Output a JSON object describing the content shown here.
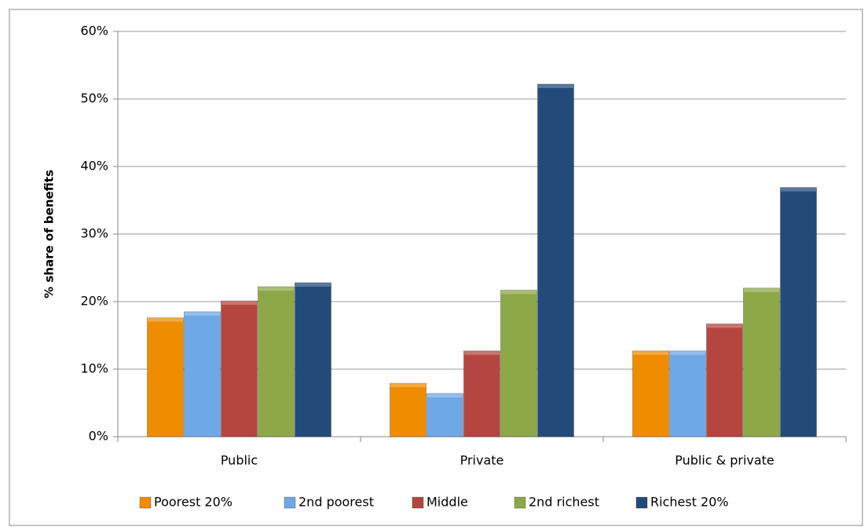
{
  "chart_data": {
    "type": "bar",
    "y_label": "% share of benefits",
    "categories": [
      "Public",
      "Private",
      "Public & private"
    ],
    "series": [
      {
        "name": "Poorest 20%",
        "color": "#f08c00",
        "values": [
          17.6,
          7.9,
          12.7
        ]
      },
      {
        "name": "2nd poorest",
        "color": "#6fa8e6",
        "values": [
          18.5,
          6.4,
          12.7
        ]
      },
      {
        "name": "Middle",
        "color": "#b5463f",
        "values": [
          20.1,
          12.7,
          16.7
        ]
      },
      {
        "name": "2nd richest",
        "color": "#8ca847",
        "values": [
          22.2,
          21.7,
          22.0
        ]
      },
      {
        "name": "Richest 20%",
        "color": "#234b7a",
        "values": [
          22.8,
          52.2,
          36.9
        ]
      }
    ],
    "ylim": [
      0,
      60
    ],
    "yticks": [
      {
        "value": 0,
        "label": "0%"
      },
      {
        "value": 10,
        "label": "10%"
      },
      {
        "value": 20,
        "label": "20%"
      },
      {
        "value": 30,
        "label": "30%"
      },
      {
        "value": 40,
        "label": "40%"
      },
      {
        "value": 50,
        "label": "50%"
      },
      {
        "value": 60,
        "label": "60%"
      }
    ],
    "grid": true,
    "legend": "bottom"
  }
}
